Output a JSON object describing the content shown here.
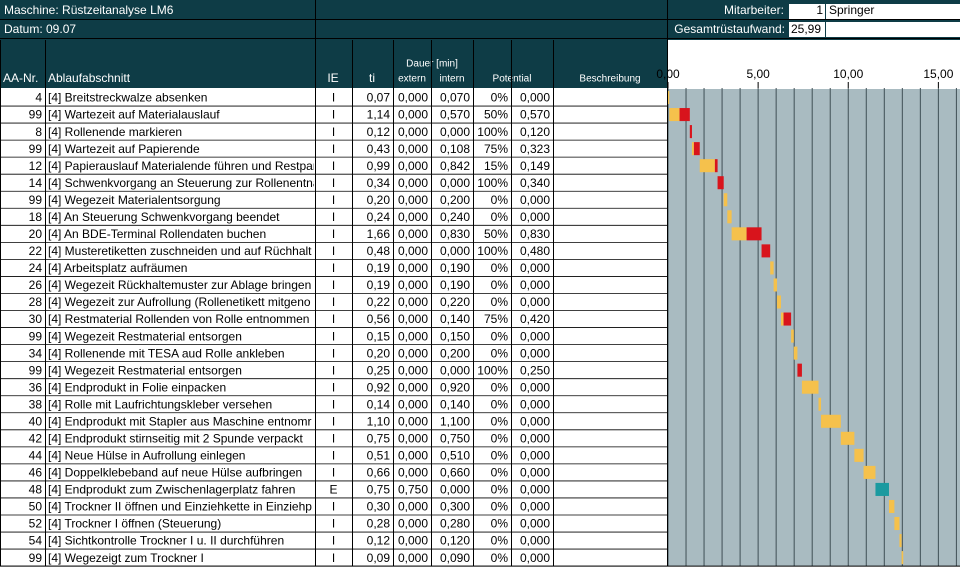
{
  "header": {
    "machine": "Maschine: Rüstzeitanalyse LM6",
    "date": "Datum: 09.07",
    "employee_label": "Mitarbeiter:",
    "employee_no": 1,
    "employee_name": "Springer",
    "total_label": "Gesamtrüstaufwand:",
    "total": "25,99"
  },
  "columns": {
    "nr": "AA-Nr.",
    "name": "Ablaufabschnitt",
    "ie": "IE",
    "ti": "ti",
    "duration": "Dauer [min]",
    "extern": "extern",
    "intern": "intern",
    "potential": "Potential",
    "description": "Beschreibung"
  },
  "rows": [
    {
      "nr": 4,
      "name": "[4] Breitstreckwalze absenken",
      "ie": "I",
      "ti": {
        "value": 0.07,
        "label": "0,07"
      },
      "extern": {
        "value": 0,
        "label": "0,000"
      },
      "intern": {
        "value": 0.07,
        "label": "0,070"
      },
      "pct": {
        "value": 0,
        "label": "0%"
      },
      "potential": {
        "value": 0,
        "label": "0,000"
      }
    },
    {
      "nr": 99,
      "name": "[4] Wartezeit auf Materialauslauf",
      "ie": "I",
      "ti": {
        "value": 1.14,
        "label": "1,14"
      },
      "extern": {
        "value": 0,
        "label": "0,000"
      },
      "intern": {
        "value": 0.57,
        "label": "0,570"
      },
      "pct": {
        "value": 50,
        "label": "50%"
      },
      "potential": {
        "value": 0.57,
        "label": "0,570"
      }
    },
    {
      "nr": 8,
      "name": "[4] Rollenende markieren",
      "ie": "I",
      "ti": {
        "value": 0.12,
        "label": "0,12"
      },
      "extern": {
        "value": 0,
        "label": "0,000"
      },
      "intern": {
        "value": 0,
        "label": "0,000"
      },
      "pct": {
        "value": 100,
        "label": "100%"
      },
      "potential": {
        "value": 0.12,
        "label": "0,120"
      }
    },
    {
      "nr": 99,
      "name": "[4] Wartezeit auf Papierende",
      "ie": "I",
      "ti": {
        "value": 0.43,
        "label": "0,43"
      },
      "extern": {
        "value": 0,
        "label": "0,000"
      },
      "intern": {
        "value": 0.108,
        "label": "0,108"
      },
      "pct": {
        "value": 75,
        "label": "75%"
      },
      "potential": {
        "value": 0.323,
        "label": "0,323"
      }
    },
    {
      "nr": 12,
      "name": "[4] Papierauslauf Materialende führen und Restpar",
      "ie": "I",
      "ti": {
        "value": 0.99,
        "label": "0,99"
      },
      "extern": {
        "value": 0,
        "label": "0,000"
      },
      "intern": {
        "value": 0.842,
        "label": "0,842"
      },
      "pct": {
        "value": 15,
        "label": "15%"
      },
      "potential": {
        "value": 0.149,
        "label": "0,149"
      }
    },
    {
      "nr": 14,
      "name": "[4] Schwenkvorgang an Steuerung zur Rollenentna",
      "ie": "I",
      "ti": {
        "value": 0.34,
        "label": "0,34"
      },
      "extern": {
        "value": 0,
        "label": "0,000"
      },
      "intern": {
        "value": 0,
        "label": "0,000"
      },
      "pct": {
        "value": 100,
        "label": "100%"
      },
      "potential": {
        "value": 0.34,
        "label": "0,340"
      }
    },
    {
      "nr": 99,
      "name": "[4] Wegezeit Materialentsorgung",
      "ie": "I",
      "ti": {
        "value": 0.2,
        "label": "0,20"
      },
      "extern": {
        "value": 0,
        "label": "0,000"
      },
      "intern": {
        "value": 0.2,
        "label": "0,200"
      },
      "pct": {
        "value": 0,
        "label": "0%"
      },
      "potential": {
        "value": 0,
        "label": "0,000"
      }
    },
    {
      "nr": 18,
      "name": "[4] An Steuerung Schwenkvorgang beendet",
      "ie": "I",
      "ti": {
        "value": 0.24,
        "label": "0,24"
      },
      "extern": {
        "value": 0,
        "label": "0,000"
      },
      "intern": {
        "value": 0.24,
        "label": "0,240"
      },
      "pct": {
        "value": 0,
        "label": "0%"
      },
      "potential": {
        "value": 0,
        "label": "0,000"
      }
    },
    {
      "nr": 20,
      "name": "[4] An BDE-Terminal Rollendaten buchen",
      "ie": "I",
      "ti": {
        "value": 1.66,
        "label": "1,66"
      },
      "extern": {
        "value": 0,
        "label": "0,000"
      },
      "intern": {
        "value": 0.83,
        "label": "0,830"
      },
      "pct": {
        "value": 50,
        "label": "50%"
      },
      "potential": {
        "value": 0.83,
        "label": "0,830"
      }
    },
    {
      "nr": 22,
      "name": "[4] Musteretiketten zuschneiden und auf Rüchhalt",
      "ie": "I",
      "ti": {
        "value": 0.48,
        "label": "0,48"
      },
      "extern": {
        "value": 0,
        "label": "0,000"
      },
      "intern": {
        "value": 0,
        "label": "0,000"
      },
      "pct": {
        "value": 100,
        "label": "100%"
      },
      "potential": {
        "value": 0.48,
        "label": "0,480"
      }
    },
    {
      "nr": 24,
      "name": "[4] Arbeitsplatz aufräumen",
      "ie": "I",
      "ti": {
        "value": 0.19,
        "label": "0,19"
      },
      "extern": {
        "value": 0,
        "label": "0,000"
      },
      "intern": {
        "value": 0.19,
        "label": "0,190"
      },
      "pct": {
        "value": 0,
        "label": "0%"
      },
      "potential": {
        "value": 0,
        "label": "0,000"
      }
    },
    {
      "nr": 26,
      "name": "[4] Wegezeit Rückhaltemuster zur Ablage bringen",
      "ie": "I",
      "ti": {
        "value": 0.19,
        "label": "0,19"
      },
      "extern": {
        "value": 0,
        "label": "0,000"
      },
      "intern": {
        "value": 0.19,
        "label": "0,190"
      },
      "pct": {
        "value": 0,
        "label": "0%"
      },
      "potential": {
        "value": 0,
        "label": "0,000"
      }
    },
    {
      "nr": 28,
      "name": "[4] Wegezeit zur Aufrollung (Rollenetikett mitgeno",
      "ie": "I",
      "ti": {
        "value": 0.22,
        "label": "0,22"
      },
      "extern": {
        "value": 0,
        "label": "0,000"
      },
      "intern": {
        "value": 0.22,
        "label": "0,220"
      },
      "pct": {
        "value": 0,
        "label": "0%"
      },
      "potential": {
        "value": 0,
        "label": "0,000"
      }
    },
    {
      "nr": 30,
      "name": "[4] Restmaterial Rollenden von Rolle entnommen",
      "ie": "I",
      "ti": {
        "value": 0.56,
        "label": "0,56"
      },
      "extern": {
        "value": 0,
        "label": "0,000"
      },
      "intern": {
        "value": 0.14,
        "label": "0,140"
      },
      "pct": {
        "value": 75,
        "label": "75%"
      },
      "potential": {
        "value": 0.42,
        "label": "0,420"
      }
    },
    {
      "nr": 99,
      "name": "[4] Wegezeit Restmaterial entsorgen",
      "ie": "I",
      "ti": {
        "value": 0.15,
        "label": "0,15"
      },
      "extern": {
        "value": 0,
        "label": "0,000"
      },
      "intern": {
        "value": 0.15,
        "label": "0,150"
      },
      "pct": {
        "value": 0,
        "label": "0%"
      },
      "potential": {
        "value": 0,
        "label": "0,000"
      }
    },
    {
      "nr": 34,
      "name": "[4] Rollenende mit TESA aud Rolle ankleben",
      "ie": "I",
      "ti": {
        "value": 0.2,
        "label": "0,20"
      },
      "extern": {
        "value": 0,
        "label": "0,000"
      },
      "intern": {
        "value": 0.2,
        "label": "0,200"
      },
      "pct": {
        "value": 0,
        "label": "0%"
      },
      "potential": {
        "value": 0,
        "label": "0,000"
      }
    },
    {
      "nr": 99,
      "name": "[4] Wegezeit Restmaterial entsorgen",
      "ie": "I",
      "ti": {
        "value": 0.25,
        "label": "0,25"
      },
      "extern": {
        "value": 0,
        "label": "0,000"
      },
      "intern": {
        "value": 0,
        "label": "0,000"
      },
      "pct": {
        "value": 100,
        "label": "100%"
      },
      "potential": {
        "value": 0.25,
        "label": "0,250"
      }
    },
    {
      "nr": 36,
      "name": "[4] Endprodukt in Folie einpacken",
      "ie": "I",
      "ti": {
        "value": 0.92,
        "label": "0,92"
      },
      "extern": {
        "value": 0,
        "label": "0,000"
      },
      "intern": {
        "value": 0.92,
        "label": "0,920"
      },
      "pct": {
        "value": 0,
        "label": "0%"
      },
      "potential": {
        "value": 0,
        "label": "0,000"
      }
    },
    {
      "nr": 38,
      "name": "[4] Rolle mit Laufrichtungskleber versehen",
      "ie": "I",
      "ti": {
        "value": 0.14,
        "label": "0,14"
      },
      "extern": {
        "value": 0,
        "label": "0,000"
      },
      "intern": {
        "value": 0.14,
        "label": "0,140"
      },
      "pct": {
        "value": 0,
        "label": "0%"
      },
      "potential": {
        "value": 0,
        "label": "0,000"
      }
    },
    {
      "nr": 40,
      "name": "[4] Endprodukt mit Stapler aus Maschine entnomr",
      "ie": "I",
      "ti": {
        "value": 1.1,
        "label": "1,10"
      },
      "extern": {
        "value": 0,
        "label": "0,000"
      },
      "intern": {
        "value": 1.1,
        "label": "1,100"
      },
      "pct": {
        "value": 0,
        "label": "0%"
      },
      "potential": {
        "value": 0,
        "label": "0,000"
      }
    },
    {
      "nr": 42,
      "name": "[4] Endprodukt stirnseitig mit 2 Spunde verpackt",
      "ie": "I",
      "ti": {
        "value": 0.75,
        "label": "0,75"
      },
      "extern": {
        "value": 0,
        "label": "0,000"
      },
      "intern": {
        "value": 0.75,
        "label": "0,750"
      },
      "pct": {
        "value": 0,
        "label": "0%"
      },
      "potential": {
        "value": 0,
        "label": "0,000"
      }
    },
    {
      "nr": 44,
      "name": "[4] Neue Hülse in Aufrollung einlegen",
      "ie": "I",
      "ti": {
        "value": 0.51,
        "label": "0,51"
      },
      "extern": {
        "value": 0,
        "label": "0,000"
      },
      "intern": {
        "value": 0.51,
        "label": "0,510"
      },
      "pct": {
        "value": 0,
        "label": "0%"
      },
      "potential": {
        "value": 0,
        "label": "0,000"
      }
    },
    {
      "nr": 46,
      "name": "[4] Doppelklebeband auf neue Hülse aufbringen",
      "ie": "I",
      "ti": {
        "value": 0.66,
        "label": "0,66"
      },
      "extern": {
        "value": 0,
        "label": "0,000"
      },
      "intern": {
        "value": 0.66,
        "label": "0,660"
      },
      "pct": {
        "value": 0,
        "label": "0%"
      },
      "potential": {
        "value": 0,
        "label": "0,000"
      }
    },
    {
      "nr": 48,
      "name": "[4] Endprodukt zum Zwischenlagerplatz fahren",
      "ie": "E",
      "ti": {
        "value": 0.75,
        "label": "0,75"
      },
      "extern": {
        "value": 0.75,
        "label": "0,750"
      },
      "intern": {
        "value": 0,
        "label": "0,000"
      },
      "pct": {
        "value": 0,
        "label": "0%"
      },
      "potential": {
        "value": 0,
        "label": "0,000"
      }
    },
    {
      "nr": 50,
      "name": "[4] Trockner II öffnen und Einziehkette in Einziehp",
      "ie": "I",
      "ti": {
        "value": 0.3,
        "label": "0,30"
      },
      "extern": {
        "value": 0,
        "label": "0,000"
      },
      "intern": {
        "value": 0.3,
        "label": "0,300"
      },
      "pct": {
        "value": 0,
        "label": "0%"
      },
      "potential": {
        "value": 0,
        "label": "0,000"
      }
    },
    {
      "nr": 52,
      "name": "[4] Trockner I öffnen (Steuerung)",
      "ie": "I",
      "ti": {
        "value": 0.28,
        "label": "0,28"
      },
      "extern": {
        "value": 0,
        "label": "0,000"
      },
      "intern": {
        "value": 0.28,
        "label": "0,280"
      },
      "pct": {
        "value": 0,
        "label": "0%"
      },
      "potential": {
        "value": 0,
        "label": "0,000"
      }
    },
    {
      "nr": 54,
      "name": "[4] Sichtkontrolle Trockner I u. II durchführen",
      "ie": "I",
      "ti": {
        "value": 0.12,
        "label": "0,12"
      },
      "extern": {
        "value": 0,
        "label": "0,000"
      },
      "intern": {
        "value": 0.12,
        "label": "0,120"
      },
      "pct": {
        "value": 0,
        "label": "0%"
      },
      "potential": {
        "value": 0,
        "label": "0,000"
      }
    },
    {
      "nr": 99,
      "name": "[4] Wegezeigt zum Trockner I",
      "ie": "I",
      "ti": {
        "value": 0.09,
        "label": "0,09"
      },
      "extern": {
        "value": 0,
        "label": "0,000"
      },
      "intern": {
        "value": 0.09,
        "label": "0,090"
      },
      "pct": {
        "value": 0,
        "label": "0%"
      },
      "potential": {
        "value": 0,
        "label": "0,000"
      }
    }
  ],
  "gantt": {
    "xlim": [
      0,
      16.2
    ],
    "xticks": [
      {
        "value": 0,
        "label": "0,00"
      },
      {
        "value": 5,
        "label": "5,00"
      },
      {
        "value": 10,
        "label": "10,00"
      },
      {
        "value": 15,
        "label": "15,00"
      }
    ],
    "minor_ticks": [
      0,
      1,
      2,
      3,
      4,
      5,
      6,
      7,
      8,
      9,
      10,
      11,
      12,
      13,
      14,
      15,
      16
    ],
    "colors": {
      "extern": "#1b9aa0",
      "intern": "#f5c14c",
      "potential": "#d8141c"
    }
  }
}
